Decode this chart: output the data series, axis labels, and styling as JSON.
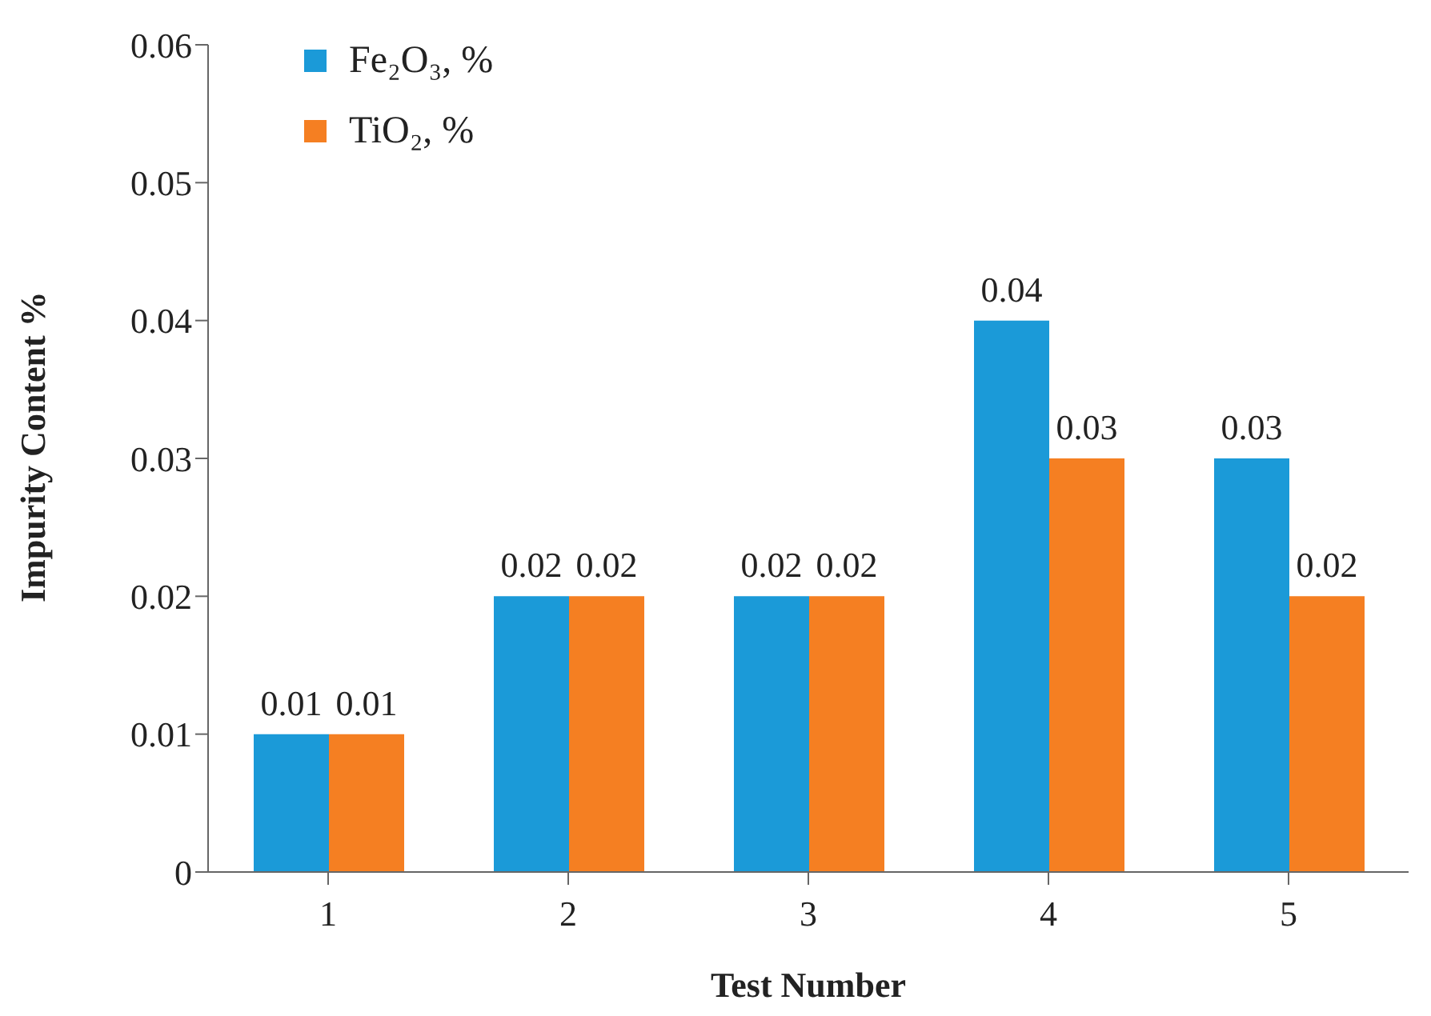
{
  "chart_data": {
    "type": "bar",
    "xlabel": "Test Number",
    "ylabel": "Impurity Content %",
    "categories": [
      "1",
      "2",
      "3",
      "4",
      "5"
    ],
    "series": [
      {
        "name": "Fe₂O₃, %",
        "color": "#1b9ad8",
        "values": [
          0.01,
          0.02,
          0.02,
          0.04,
          0.03
        ]
      },
      {
        "name": "TiO₂, %",
        "color": "#f57f22",
        "values": [
          0.01,
          0.02,
          0.02,
          0.03,
          0.02
        ]
      }
    ],
    "ylim": [
      0,
      0.06
    ],
    "yticks": [
      0,
      0.01,
      0.02,
      0.03,
      0.04,
      0.05,
      0.06
    ],
    "data_labels": true,
    "legend": "top left"
  }
}
